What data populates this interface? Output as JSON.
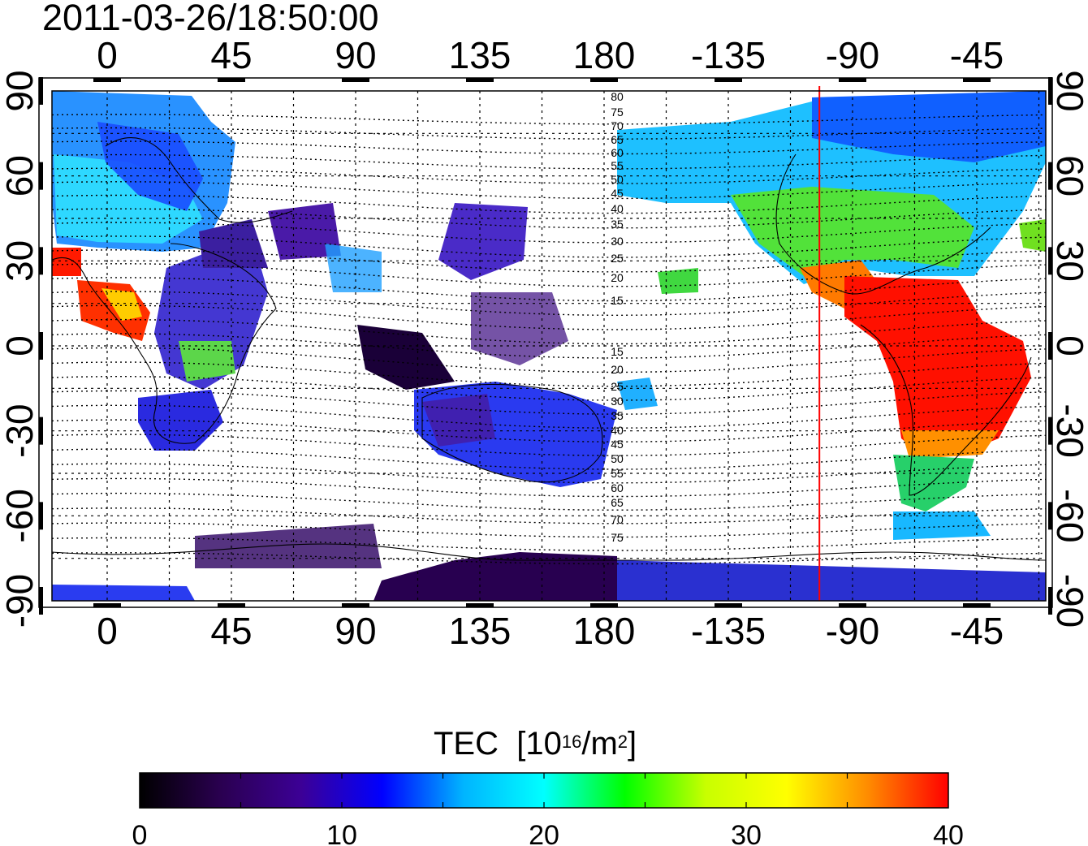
{
  "title": "2011-03-26/18:50:00",
  "map": {
    "lon_ticks": [
      "0",
      "45",
      "90",
      "135",
      "180",
      "-135",
      "-90",
      "-45"
    ],
    "lat_ticks": [
      "90",
      "60",
      "30",
      "0",
      "-30",
      "-60",
      "-90"
    ],
    "magnetic_latitude_labels": [
      "80",
      "75",
      "70",
      "65",
      "60",
      "55",
      "50",
      "45",
      "40",
      "35",
      "30",
      "25",
      "20",
      "15",
      "15",
      "20",
      "25",
      "30",
      "35",
      "40",
      "45",
      "50",
      "55",
      "60",
      "65",
      "70",
      "75"
    ],
    "terminator_longitude": -102
  },
  "colorbar": {
    "label_main": "TEC",
    "label_unit_prefix": "[10",
    "label_unit_exp1": "16",
    "label_unit_mid": "/m",
    "label_unit_exp2": "2",
    "label_unit_suffix": "]",
    "ticks": [
      "0",
      "10",
      "20",
      "30",
      "40"
    ],
    "range": [
      0,
      40
    ],
    "colormap": [
      "#000000",
      "#2a0050",
      "#3c0096",
      "#0000ff",
      "#00b4ff",
      "#00ffff",
      "#00ff00",
      "#c8ff00",
      "#ffff00",
      "#ff8c00",
      "#ff0000"
    ]
  },
  "colors": {
    "terminator": "#ff0000"
  }
}
